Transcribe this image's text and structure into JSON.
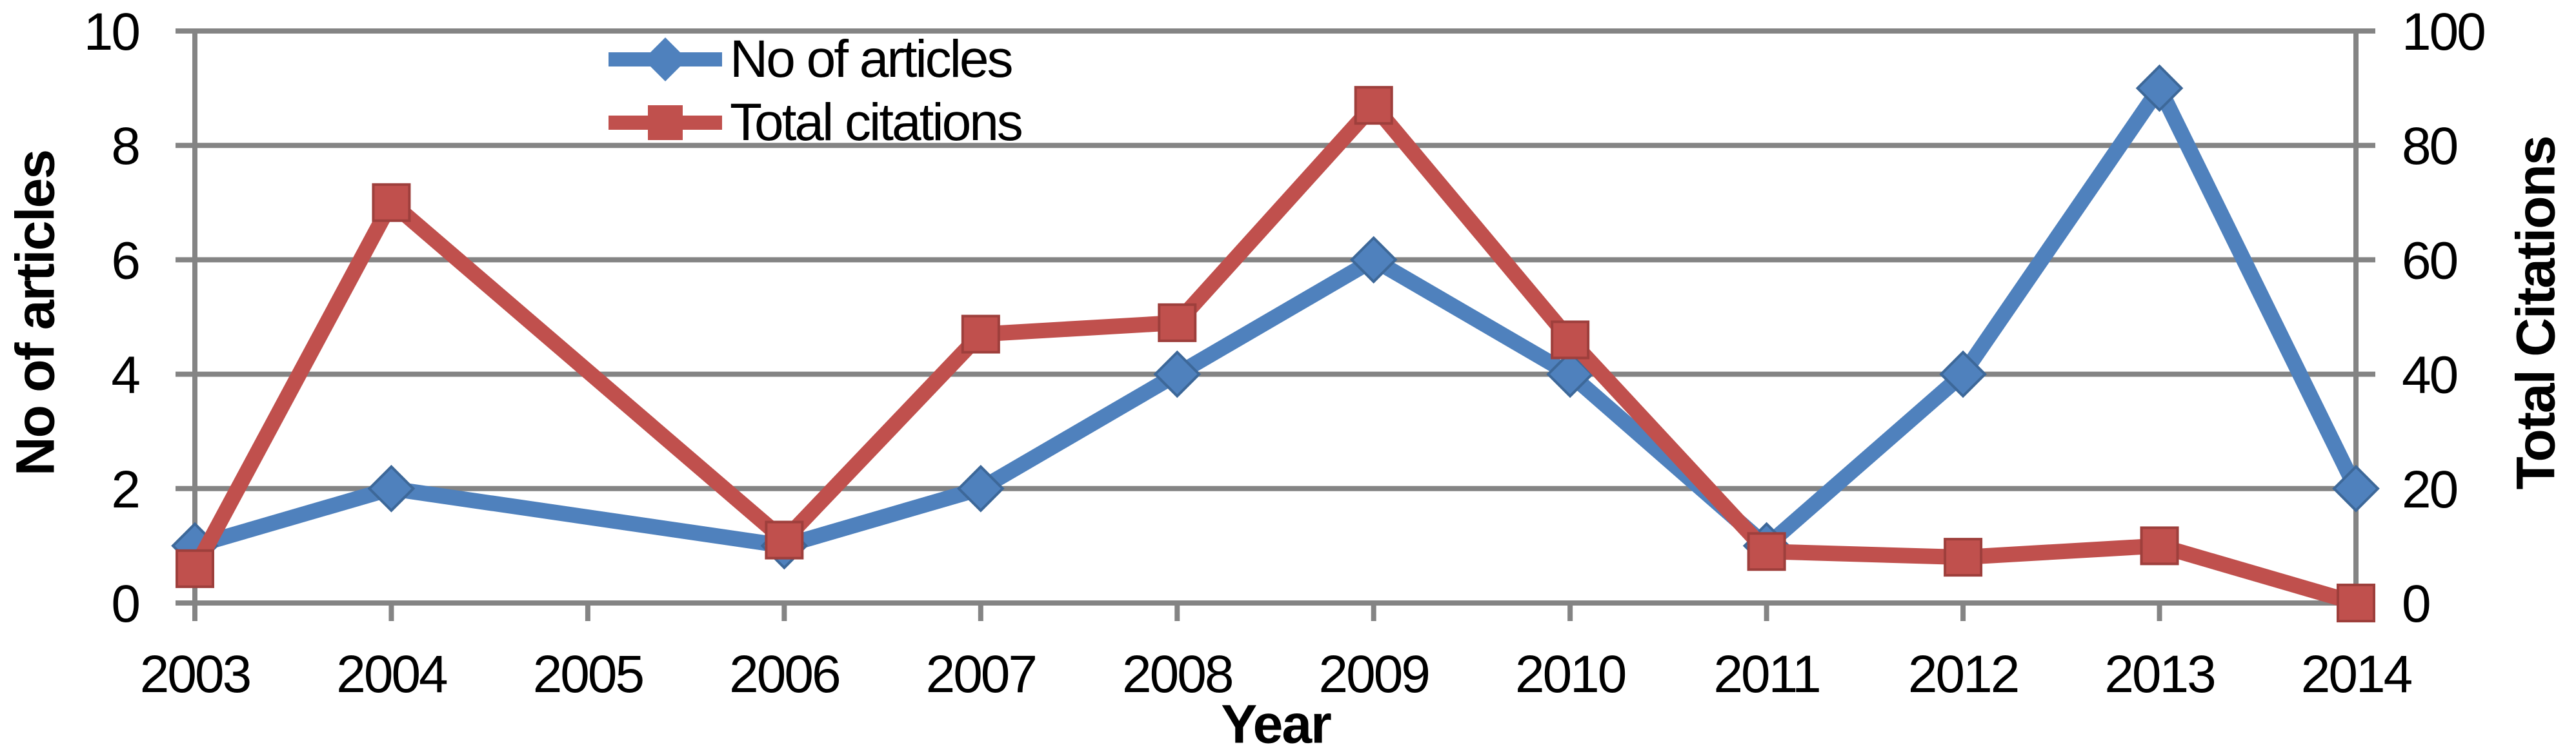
{
  "chart_data": {
    "type": "line",
    "title": "",
    "categories": [
      "2003",
      "2004",
      "2005",
      "2006",
      "2007",
      "2008",
      "2009",
      "2010",
      "2011",
      "2012",
      "2013",
      "2014"
    ],
    "series": [
      {
        "name": "No of articles",
        "axis": "left",
        "marker": "diamond",
        "color": "#4F81BD",
        "marker_edge": "#3D6899",
        "values": [
          1,
          2,
          null,
          1,
          2,
          4,
          6,
          4,
          1,
          4,
          9,
          2
        ]
      },
      {
        "name": "Total citations",
        "axis": "right",
        "marker": "square",
        "color": "#C0504D",
        "marker_edge": "#9E3F3C",
        "values": [
          6,
          70,
          null,
          11,
          47,
          49,
          87,
          46,
          9,
          8,
          10,
          0
        ]
      }
    ],
    "left_axis": {
      "title": "No of articles",
      "min": 0,
      "max": 10,
      "tick_labels": [
        "0",
        "2",
        "4",
        "6",
        "8",
        "10"
      ]
    },
    "right_axis": {
      "title": "Total Citations",
      "min": 0,
      "max": 100,
      "tick_labels": [
        "0",
        "20",
        "40",
        "60",
        "80",
        "100"
      ]
    },
    "x_axis": {
      "title": "Year"
    },
    "legend_position": "top-center",
    "grid": true,
    "gridline_color": "#848484",
    "axis_color": "#848484",
    "text_color": "#000000",
    "background": "#FFFFFF"
  }
}
